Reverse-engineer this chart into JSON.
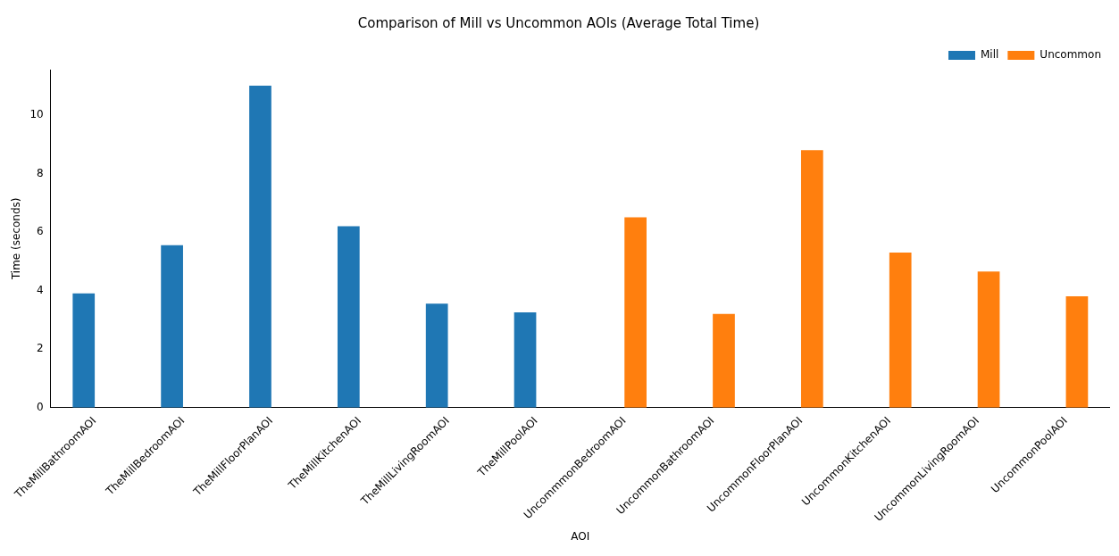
{
  "chart_data": {
    "type": "bar",
    "title": "Comparison of Mill vs Uncommon AOIs (Average Total Time)",
    "xlabel": "AOI",
    "ylabel": "Time (seconds)",
    "categories": [
      "TheMillBathroomAOI",
      "TheMillBedroomAOI",
      "TheMillFloorPlanAOI",
      "TheMillKitchenAOI",
      "TheMillLivingRoomAOI",
      "TheMillPoolAOI",
      "UncommmonBedroomAOI",
      "UncommonBathroomAOI",
      "UncommonFloorPlanAOI",
      "UncommonKitchenAOI",
      "UncommonLivingRoomAOI",
      "UncommonPoolAOI"
    ],
    "series": [
      {
        "name": "Mill",
        "color": "#1f77b4",
        "values": [
          3.9,
          5.55,
          11.0,
          6.2,
          3.55,
          3.25,
          null,
          null,
          null,
          null,
          null,
          null
        ]
      },
      {
        "name": "Uncommon",
        "color": "#ff7f0e",
        "values": [
          null,
          null,
          null,
          null,
          null,
          null,
          6.5,
          3.2,
          8.8,
          5.3,
          4.65,
          3.8
        ]
      }
    ],
    "ylim": [
      0,
      11.55
    ],
    "yticks": [
      0,
      2,
      4,
      6,
      8,
      10
    ],
    "grid": false,
    "legend": "top right"
  }
}
